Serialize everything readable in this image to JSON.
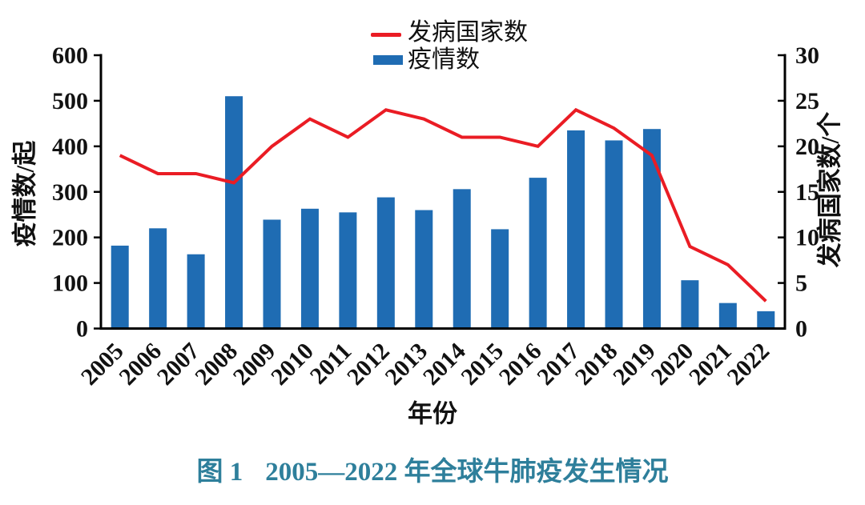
{
  "figure": {
    "caption_label": "图 1",
    "caption_title": "2005—2022 年全球牛肺疫发生情况",
    "caption_color": "#2e7f9b",
    "background": "#ffffff"
  },
  "chart_data": {
    "type": "bar",
    "combo": "bar+line",
    "title": "",
    "categories": [
      "2005",
      "2006",
      "2007",
      "2008",
      "2009",
      "2010",
      "2011",
      "2012",
      "2013",
      "2014",
      "2015",
      "2016",
      "2017",
      "2018",
      "2019",
      "2020",
      "2021",
      "2022"
    ],
    "series": [
      {
        "name": "疫情数",
        "type": "bar",
        "axis": "left",
        "color": "#1f6cb3",
        "values": [
          182,
          220,
          163,
          510,
          239,
          263,
          255,
          288,
          260,
          306,
          218,
          331,
          435,
          413,
          438,
          106,
          56,
          38
        ]
      },
      {
        "name": "发病国家数",
        "type": "line",
        "axis": "right",
        "color": "#ea1c24",
        "values": [
          19,
          17,
          17,
          16,
          20,
          23,
          21,
          24,
          23,
          21,
          21,
          20,
          24,
          22,
          19,
          9,
          7,
          3
        ]
      }
    ],
    "left_axis": {
      "label": "疫情数/起",
      "min": 0,
      "max": 600,
      "ticks": [
        0,
        100,
        200,
        300,
        400,
        500,
        600
      ]
    },
    "right_axis": {
      "label": "发病国家数/个",
      "min": 0,
      "max": 30,
      "ticks": [
        0,
        5,
        10,
        15,
        20,
        25,
        30
      ]
    },
    "x_axis": {
      "label": "年份",
      "tick_rotation_deg": 45
    },
    "legend": {
      "position": "top-center",
      "entries": [
        "发病国家数",
        "疫情数"
      ]
    },
    "grid": false,
    "axis_color": "#000000",
    "text_color": "#111111"
  }
}
